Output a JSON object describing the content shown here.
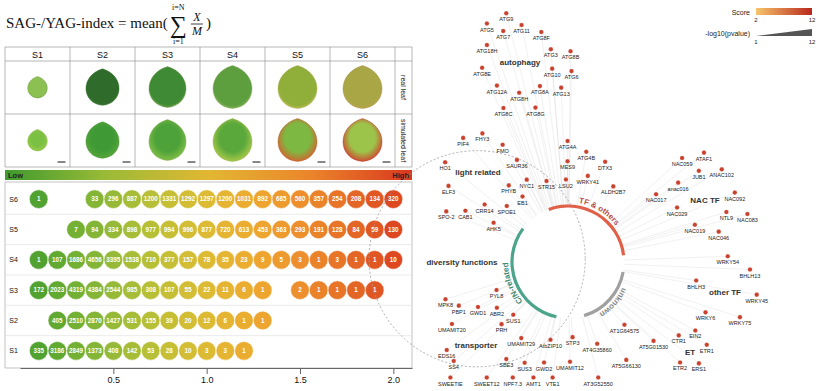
{
  "formula": {
    "lhs": "SAG-/YAG-index = mean(",
    "operator": "∑",
    "upper": "i=N",
    "lower": "i=1",
    "numerator": "X",
    "denominator": "M",
    "rhs": ")"
  },
  "leaf_panel": {
    "stages": [
      "S1",
      "S2",
      "S3",
      "S4",
      "S5",
      "S6"
    ],
    "rows": [
      "real leaf",
      "simulated leaf"
    ]
  },
  "chart_data": {
    "type": "bubble",
    "x": [
      0.1,
      0.2,
      0.3,
      0.4,
      0.5,
      0.6,
      0.7,
      0.8,
      0.9,
      1.0,
      1.1,
      1.2,
      1.3,
      1.4,
      1.5,
      1.6,
      1.7,
      1.8,
      1.9,
      2.0
    ],
    "series": [
      {
        "name": "S1",
        "values": [
          335,
          3186,
          2849,
          1373,
          408,
          142,
          53,
          28,
          10,
          3,
          3,
          1,
          null,
          null,
          null,
          null,
          null,
          null,
          null,
          null
        ]
      },
      {
        "name": "S2",
        "values": [
          null,
          405,
          2510,
          2870,
          1427,
          531,
          155,
          39,
          20,
          12,
          6,
          1,
          1,
          null,
          null,
          null,
          null,
          null,
          null,
          null
        ]
      },
      {
        "name": "S3",
        "values": [
          172,
          2023,
          4319,
          4384,
          2544,
          985,
          308,
          107,
          55,
          22,
          11,
          6,
          1,
          null,
          2,
          1,
          1,
          1,
          1,
          null
        ]
      },
      {
        "name": "S4",
        "values": [
          1,
          107,
          1686,
          4656,
          3395,
          1538,
          710,
          377,
          157,
          78,
          35,
          23,
          9,
          5,
          3,
          1,
          3,
          1,
          1,
          10
        ]
      },
      {
        "name": "S5",
        "values": [
          null,
          null,
          7,
          94,
          334,
          898,
          977,
          994,
          996,
          877,
          720,
          613,
          453,
          363,
          293,
          191,
          128,
          84,
          59,
          130
        ]
      },
      {
        "name": "S6",
        "values": [
          1,
          null,
          null,
          33,
          296,
          887,
          1200,
          1331,
          1292,
          1297,
          1200,
          1031,
          892,
          685,
          560,
          357,
          254,
          208,
          134,
          320
        ]
      }
    ],
    "xlim": [
      0,
      2.1
    ],
    "xticks": [
      0.5,
      {
        "value": 1,
        "label": "1.0"
      },
      1.5,
      {
        "value": 2,
        "label": "2.0"
      }
    ],
    "colorbar": {
      "low": "Low",
      "high": "High"
    },
    "data_labels": true
  },
  "network": {
    "legend": {
      "score": {
        "title": "Score",
        "ticks": [
          2,
          12
        ]
      },
      "size": {
        "title": "-log10(pvalue)",
        "ticks": [
          1,
          12
        ]
      }
    },
    "groups": [
      {
        "label": "TF & others"
      },
      {
        "label": "unknown"
      },
      {
        "label": "C/N-related"
      }
    ],
    "clusters": [
      {
        "label": "autophagy",
        "nodes": [
          "ATG10",
          "ATG12A",
          "ATG11",
          "ATG8A",
          "ATG18H",
          "ATG3",
          "ATG8H",
          "ATG7",
          "ATG6",
          "ATG8E",
          "ATG8F",
          "ATG8G",
          "ATG5",
          "ATG8B",
          "ATG8C",
          "ATG9",
          "ATG13"
        ]
      },
      {
        "label": "light related",
        "nodes": [
          "SAUR36",
          "ELF3",
          "FHY3",
          "NYC1",
          "HO1",
          "FMO",
          "PHYB",
          "PIF4"
        ]
      },
      {
        "label": "diversity functions",
        "nodes": [
          "SPOE1",
          "EDS16",
          "CRR14",
          "ABR2",
          "SPO-2",
          "EB1",
          "PBP1",
          "CAB1",
          "PYL8",
          "MPK8",
          "AHK5"
        ]
      },
      {
        "label": "transporter",
        "nodes": [
          "VTE1",
          "NPF7.3",
          "SWEETIE",
          "AMT1",
          "SWEET12"
        ]
      },
      {
        "nodes": [
          "AtbZIP10",
          "UMAMIT20",
          "UMAMIT29",
          "UMAMIT12",
          "PRH",
          "GWD1",
          "GWD2",
          "SUS1",
          "STP3",
          "SS4",
          "SUS3",
          "SBE3"
        ]
      },
      {
        "nodes": [
          "AT5G01530",
          "AT3G52550",
          "AT1G64575",
          "AT5G66130",
          "AT4G35860"
        ]
      },
      {
        "nodes": [
          "WRKY41",
          "MES9",
          "ATG4B",
          "ALDH2B7",
          "STR15",
          "DTX3",
          "LSU2",
          "ATG4A"
        ]
      },
      {
        "label": "NAC TF",
        "nodes": [
          "NAC092",
          "NAC029",
          "JUB1",
          "NTL9",
          "anac016",
          "ANAC102",
          "NAC019",
          "NAC059",
          "NAC083",
          "NAC017",
          "ATAF1",
          "NAC046"
        ]
      },
      {
        "label": "other TF",
        "nodes": [
          "WRKY45",
          "WRKY6",
          "WRKY54",
          "WRKY75",
          "BHLH3",
          "BHLH13"
        ]
      },
      {
        "label": "ET",
        "nodes": [
          "ETR1",
          "ETR2",
          "EIN2",
          "ERS1",
          "CTR1"
        ]
      }
    ]
  }
}
